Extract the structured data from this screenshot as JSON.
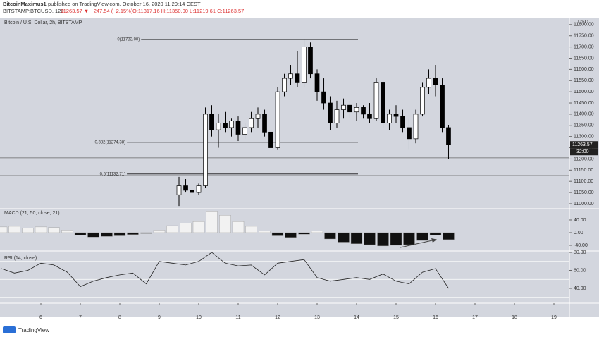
{
  "header": {
    "author": "BitcoinMaximus1",
    "published": "published on TradingView.com, October 16, 2020 11:29:14 CEST",
    "symbol": "BITSTAMP:BTCUSD, 120",
    "change": "11263.57 ▼ −247.54 (−2.15%)",
    "ohlc": "O:11317.16 H:11350.00 L:11219.61 C:11263.57"
  },
  "footer": "TradingView",
  "chart_data": [
    {
      "type": "candlestick",
      "title": "Bitcoin / U.S. Dollar, 2h, BITSTAMP",
      "axis_label": "USD",
      "last_price": "11263.57",
      "countdown": "32:00",
      "xlim": [
        4.964,
        19.393
      ],
      "ylim": [
        10981,
        11831
      ],
      "yticks": [
        {
          "value": 11000,
          "label": "11000.00"
        },
        {
          "value": 11050,
          "label": "11050.00"
        },
        {
          "value": 11100,
          "label": "11100.00"
        },
        {
          "value": 11150,
          "label": "11150.00"
        },
        {
          "value": 11200,
          "label": "11200.00"
        },
        {
          "value": 11250,
          "label": "11250.00"
        },
        {
          "value": 11300,
          "label": "11300.00"
        },
        {
          "value": 11350,
          "label": "11350.00"
        },
        {
          "value": 11400,
          "label": "11400.00"
        },
        {
          "value": 11450,
          "label": "11450.00"
        },
        {
          "value": 11500,
          "label": "11500.00"
        },
        {
          "value": 11550,
          "label": "11550.00"
        },
        {
          "value": 11600,
          "label": "11600.00"
        },
        {
          "value": 11650,
          "label": "11650.00"
        },
        {
          "value": 11700,
          "label": "11700.00"
        },
        {
          "value": 11750,
          "label": "11750.00"
        },
        {
          "value": 11800,
          "label": "11800.00"
        }
      ],
      "fib": [
        {
          "label": "0(11733.00)",
          "value": 11733,
          "from": 8.54
        },
        {
          "label": "0.382(11274.38)",
          "value": 11274.38,
          "from": 8.18
        },
        {
          "label": "0.5(11132.71)",
          "value": 11132.71,
          "from": 8.18
        }
      ],
      "support_lines": [
        11205,
        11126
      ],
      "x": [
        9.5,
        9.67,
        9.83,
        10,
        10.17,
        10.33,
        10.5,
        10.67,
        10.83,
        11,
        11.17,
        11.33,
        11.5,
        11.67,
        11.83,
        12,
        12.17,
        12.33,
        12.5,
        12.67,
        12.83,
        13,
        13.17,
        13.33,
        13.5,
        13.67,
        13.83,
        14,
        14.17,
        14.33,
        14.5,
        14.67,
        14.83,
        15,
        15.17,
        15.33,
        15.5,
        15.67,
        15.83,
        16,
        16.17,
        16.33
      ],
      "open": [
        11040,
        11080,
        11060,
        11050,
        11080,
        11400,
        11330,
        11360,
        11340,
        11370,
        11310,
        11340,
        11380,
        11400,
        11320,
        11250,
        11500,
        11560,
        11580,
        11540,
        11700,
        11580,
        11500,
        11450,
        11360,
        11420,
        11440,
        11410,
        11430,
        11400,
        11380,
        11540,
        11360,
        11400,
        11390,
        11340,
        11290,
        11400,
        11520,
        11560,
        11530,
        11340
      ],
      "high": [
        11120,
        11110,
        11100,
        11090,
        11430,
        11440,
        11400,
        11410,
        11380,
        11390,
        11360,
        11410,
        11430,
        11420,
        11340,
        11520,
        11580,
        11620,
        11680,
        11733,
        11720,
        11600,
        11560,
        11480,
        11460,
        11470,
        11460,
        11450,
        11440,
        11450,
        11560,
        11550,
        11420,
        11440,
        11420,
        11380,
        11420,
        11540,
        11600,
        11620,
        11560,
        11350
      ],
      "low": [
        10990,
        11050,
        11030,
        11040,
        11070,
        11300,
        11250,
        11320,
        11300,
        11280,
        11290,
        11320,
        11340,
        11300,
        11180,
        11240,
        11480,
        11530,
        11520,
        11520,
        11560,
        11460,
        11420,
        11330,
        11340,
        11380,
        11380,
        11370,
        11380,
        11360,
        11370,
        11340,
        11330,
        11360,
        11320,
        11240,
        11270,
        11390,
        11490,
        11480,
        11320,
        11200
      ],
      "close": [
        11080,
        11060,
        11050,
        11080,
        11400,
        11330,
        11360,
        11340,
        11370,
        11310,
        11340,
        11380,
        11400,
        11320,
        11250,
        11500,
        11560,
        11580,
        11540,
        11700,
        11580,
        11500,
        11450,
        11360,
        11420,
        11440,
        11410,
        11430,
        11400,
        11380,
        11540,
        11360,
        11400,
        11390,
        11340,
        11290,
        11400,
        11520,
        11560,
        11530,
        11340,
        11263.57
      ]
    },
    {
      "type": "bar",
      "title": "MACD (21, 50, close, 21)",
      "xlim": [
        4.964,
        19.393
      ],
      "ylim": [
        -55.6,
        73.3
      ],
      "yticks": [
        {
          "value": 40,
          "label": "40.00"
        },
        {
          "value": 0,
          "label": "0.00"
        },
        {
          "value": -40,
          "label": "-40.00"
        }
      ],
      "x": [
        5,
        5.33,
        5.67,
        6,
        6.33,
        6.67,
        7,
        7.33,
        7.67,
        8,
        8.33,
        8.67,
        9,
        9.33,
        9.67,
        10,
        10.33,
        10.67,
        11,
        11.33,
        11.67,
        12,
        12.33,
        12.67,
        13,
        13.33,
        13.67,
        14,
        14.33,
        14.67,
        15,
        15.33,
        15.67,
        16,
        16.33
      ],
      "values": [
        18,
        20,
        15,
        18,
        16,
        8,
        -8,
        -14,
        -12,
        -10,
        -6,
        -3,
        8,
        22,
        30,
        35,
        68,
        55,
        35,
        20,
        5,
        -10,
        -15,
        -5,
        5,
        -20,
        -30,
        -35,
        -38,
        -42,
        -40,
        -38,
        -25,
        -8,
        -22
      ]
    },
    {
      "type": "line",
      "title": "RSI (14, close)",
      "xlim": [
        4.964,
        19.393
      ],
      "ylim": [
        25.1,
        80.8
      ],
      "yticks": [
        {
          "value": 80,
          "label": "80.00"
        },
        {
          "value": 60,
          "label": "60.00"
        },
        {
          "value": 40,
          "label": "40.00"
        }
      ],
      "bands": [
        70,
        50,
        30
      ],
      "xticks": [
        6,
        7,
        8,
        9,
        10,
        11,
        12,
        13,
        14,
        15,
        16,
        17,
        18,
        19
      ],
      "x": [
        5,
        5.33,
        5.67,
        6,
        6.33,
        6.67,
        7,
        7.33,
        7.67,
        8,
        8.33,
        8.67,
        9,
        9.33,
        9.67,
        10,
        10.33,
        10.67,
        11,
        11.33,
        11.67,
        12,
        12.33,
        12.67,
        13,
        13.33,
        13.67,
        14,
        14.33,
        14.67,
        15,
        15.33,
        15.67,
        16,
        16.33
      ],
      "values": [
        62,
        57,
        60,
        68,
        66,
        58,
        42,
        48,
        52,
        55,
        57,
        45,
        70,
        68,
        66,
        70,
        80,
        68,
        65,
        66,
        55,
        68,
        70,
        72,
        52,
        48,
        50,
        52,
        50,
        56,
        48,
        45,
        58,
        62,
        40
      ]
    }
  ]
}
